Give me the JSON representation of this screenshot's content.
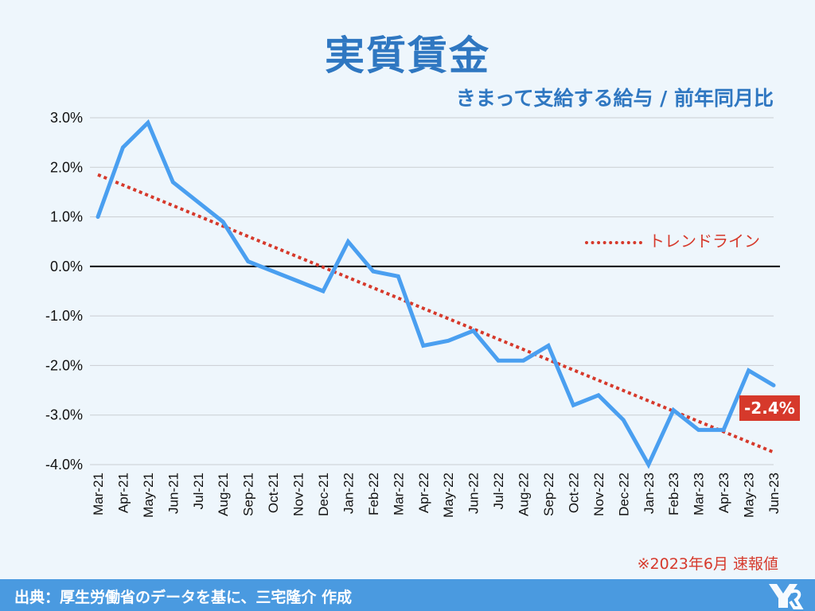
{
  "header": {
    "title": "実質賃金",
    "subtitle": "きまって支給する給与 / 前年同月比"
  },
  "legend": {
    "trend_label": "トレンドライン"
  },
  "annotation": {
    "last_value": "-2.4%"
  },
  "note": "※2023年6月 速報値",
  "footer": {
    "source": "出典：厚生労働省のデータを基に、三宅隆介 作成"
  },
  "colors": {
    "title": "#2f77c1",
    "series": "#4a9ff0",
    "trend": "#d6392b",
    "footer": "#4a9ae0",
    "background": "#eef6fc"
  },
  "chart_data": {
    "type": "line",
    "title": "実質賃金",
    "subtitle": "きまって支給する給与 / 前年同月比",
    "x": [
      "Mar-21",
      "Apr-21",
      "May-21",
      "Jun-21",
      "Jul-21",
      "Aug-21",
      "Sep-21",
      "Oct-21",
      "Nov-21",
      "Dec-21",
      "Jan-22",
      "Feb-22",
      "Mar-22",
      "Apr-22",
      "May-22",
      "Jun-22",
      "Jul-22",
      "Aug-22",
      "Sep-22",
      "Oct-22",
      "Nov-22",
      "Dec-22",
      "Jan-23",
      "Feb-23",
      "Mar-23",
      "Apr-23",
      "May-23",
      "Jun-23"
    ],
    "series": [
      {
        "values": [
          1.0,
          2.4,
          2.9,
          1.7,
          1.3,
          0.9,
          0.1,
          -0.1,
          -0.3,
          -0.5,
          0.5,
          -0.1,
          -0.2,
          -1.6,
          -1.5,
          -1.3,
          -1.9,
          -1.9,
          -1.6,
          -2.8,
          -2.6,
          -3.1,
          -4.0,
          -2.9,
          -3.3,
          -3.3,
          -2.1,
          -2.4
        ]
      },
      {
        "name": "トレンドライン",
        "style": "dotted",
        "start": 1.85,
        "end": -3.75
      }
    ],
    "y_ticks": [
      "3.0%",
      "2.0%",
      "1.0%",
      "0.0%",
      "-1.0%",
      "-2.0%",
      "-3.0%",
      "-4.0%"
    ],
    "ylim": [
      -4.0,
      3.0
    ],
    "grid": true,
    "legend": "right"
  }
}
